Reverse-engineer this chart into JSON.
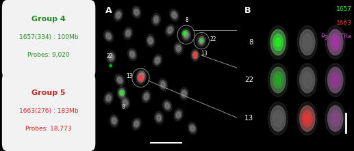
{
  "background_color": "#000000",
  "left_panel_bg": "#d8d8d8",
  "box_bg": "#f2f2f2",
  "group4": {
    "title": "Group 4",
    "title_color": "#228822",
    "line2": "1657(334) : 100Mb",
    "line2_color": "#228822",
    "line3": "Probes: 9,020",
    "line3_color": "#228822"
  },
  "group5": {
    "title": "Group 5",
    "title_color": "#cc2222",
    "line2": "1663(276) : 183Mb",
    "line2_color": "#cc2222",
    "line3": "Probes: 18,773",
    "line3_color": "#cc2222"
  },
  "panel_A_label": "A",
  "panel_B_label": "B",
  "legend_labels": [
    "1657",
    "1663",
    "Pg167TRa"
  ],
  "legend_colors": [
    "#44ee44",
    "#ee4444",
    "#cc55cc"
  ],
  "chr_row_labels": [
    "8",
    "22",
    "13"
  ],
  "label_color": "#ffffff",
  "scale_bar_color": "#ffffff"
}
